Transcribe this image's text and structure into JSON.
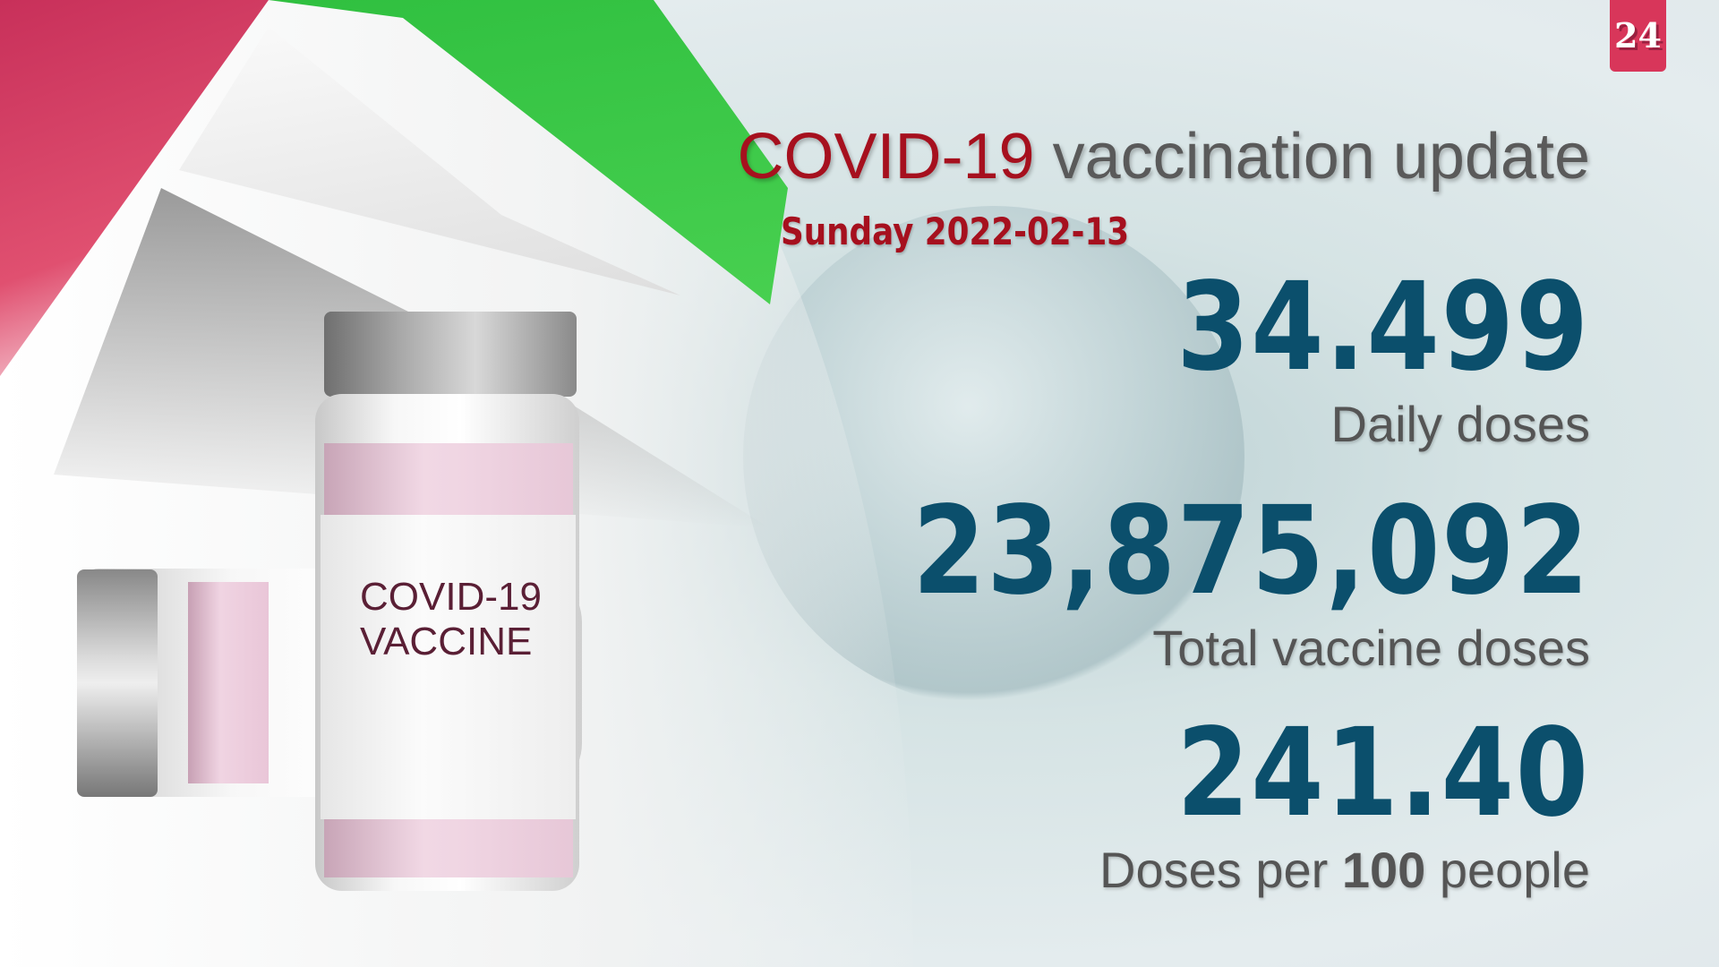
{
  "logo": {
    "text": "24",
    "color": "#d8365a"
  },
  "header": {
    "title_highlight": "COVID-19",
    "title_rest": " vaccination update",
    "date": "Sunday 2022-02-13"
  },
  "vial_label": {
    "line1": "COVID-19",
    "line2": "VACCINE"
  },
  "stats": [
    {
      "value": "34.499",
      "label": "Daily doses"
    },
    {
      "value": "23,875,092",
      "label": "Total vaccine doses"
    },
    {
      "value": "241.40",
      "label_pre": "Doses per ",
      "label_bold": "100",
      "label_post": " people"
    }
  ],
  "colors": {
    "accent_red": "#a6101e",
    "number_blue": "#0b4f6c",
    "label_gray": "#555555"
  }
}
